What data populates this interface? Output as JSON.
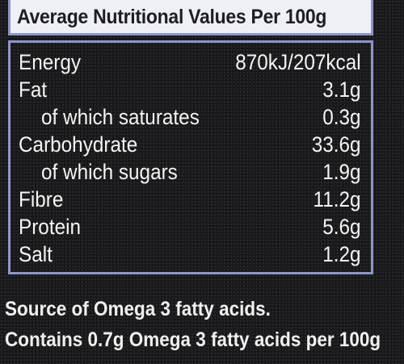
{
  "header": {
    "title": "Average Nutritional Values Per 100g"
  },
  "nutrients": [
    {
      "name": "Energy",
      "value": "870kJ/207kcal",
      "indent": false
    },
    {
      "name": "Fat",
      "value": "3.1g",
      "indent": false
    },
    {
      "name": "of which saturates",
      "value": "0.3g",
      "indent": true
    },
    {
      "name": "Carbohydrate",
      "value": "33.6g",
      "indent": false
    },
    {
      "name": "of which sugars",
      "value": "1.9g",
      "indent": true
    },
    {
      "name": "Fibre",
      "value": "11.2g",
      "indent": false
    },
    {
      "name": "Protein",
      "value": "5.6g",
      "indent": false
    },
    {
      "name": "Salt",
      "value": "1.2g",
      "indent": false
    }
  ],
  "footer": {
    "line1": "Source of Omega 3 fatty acids.",
    "line2": "Contains 0.7g Omega 3 fatty acids per 100g"
  },
  "colors": {
    "background": "#1a1a1d",
    "border": "#8e95c8",
    "header_fill": "#eef0f6",
    "text": "#f4f4f4"
  }
}
